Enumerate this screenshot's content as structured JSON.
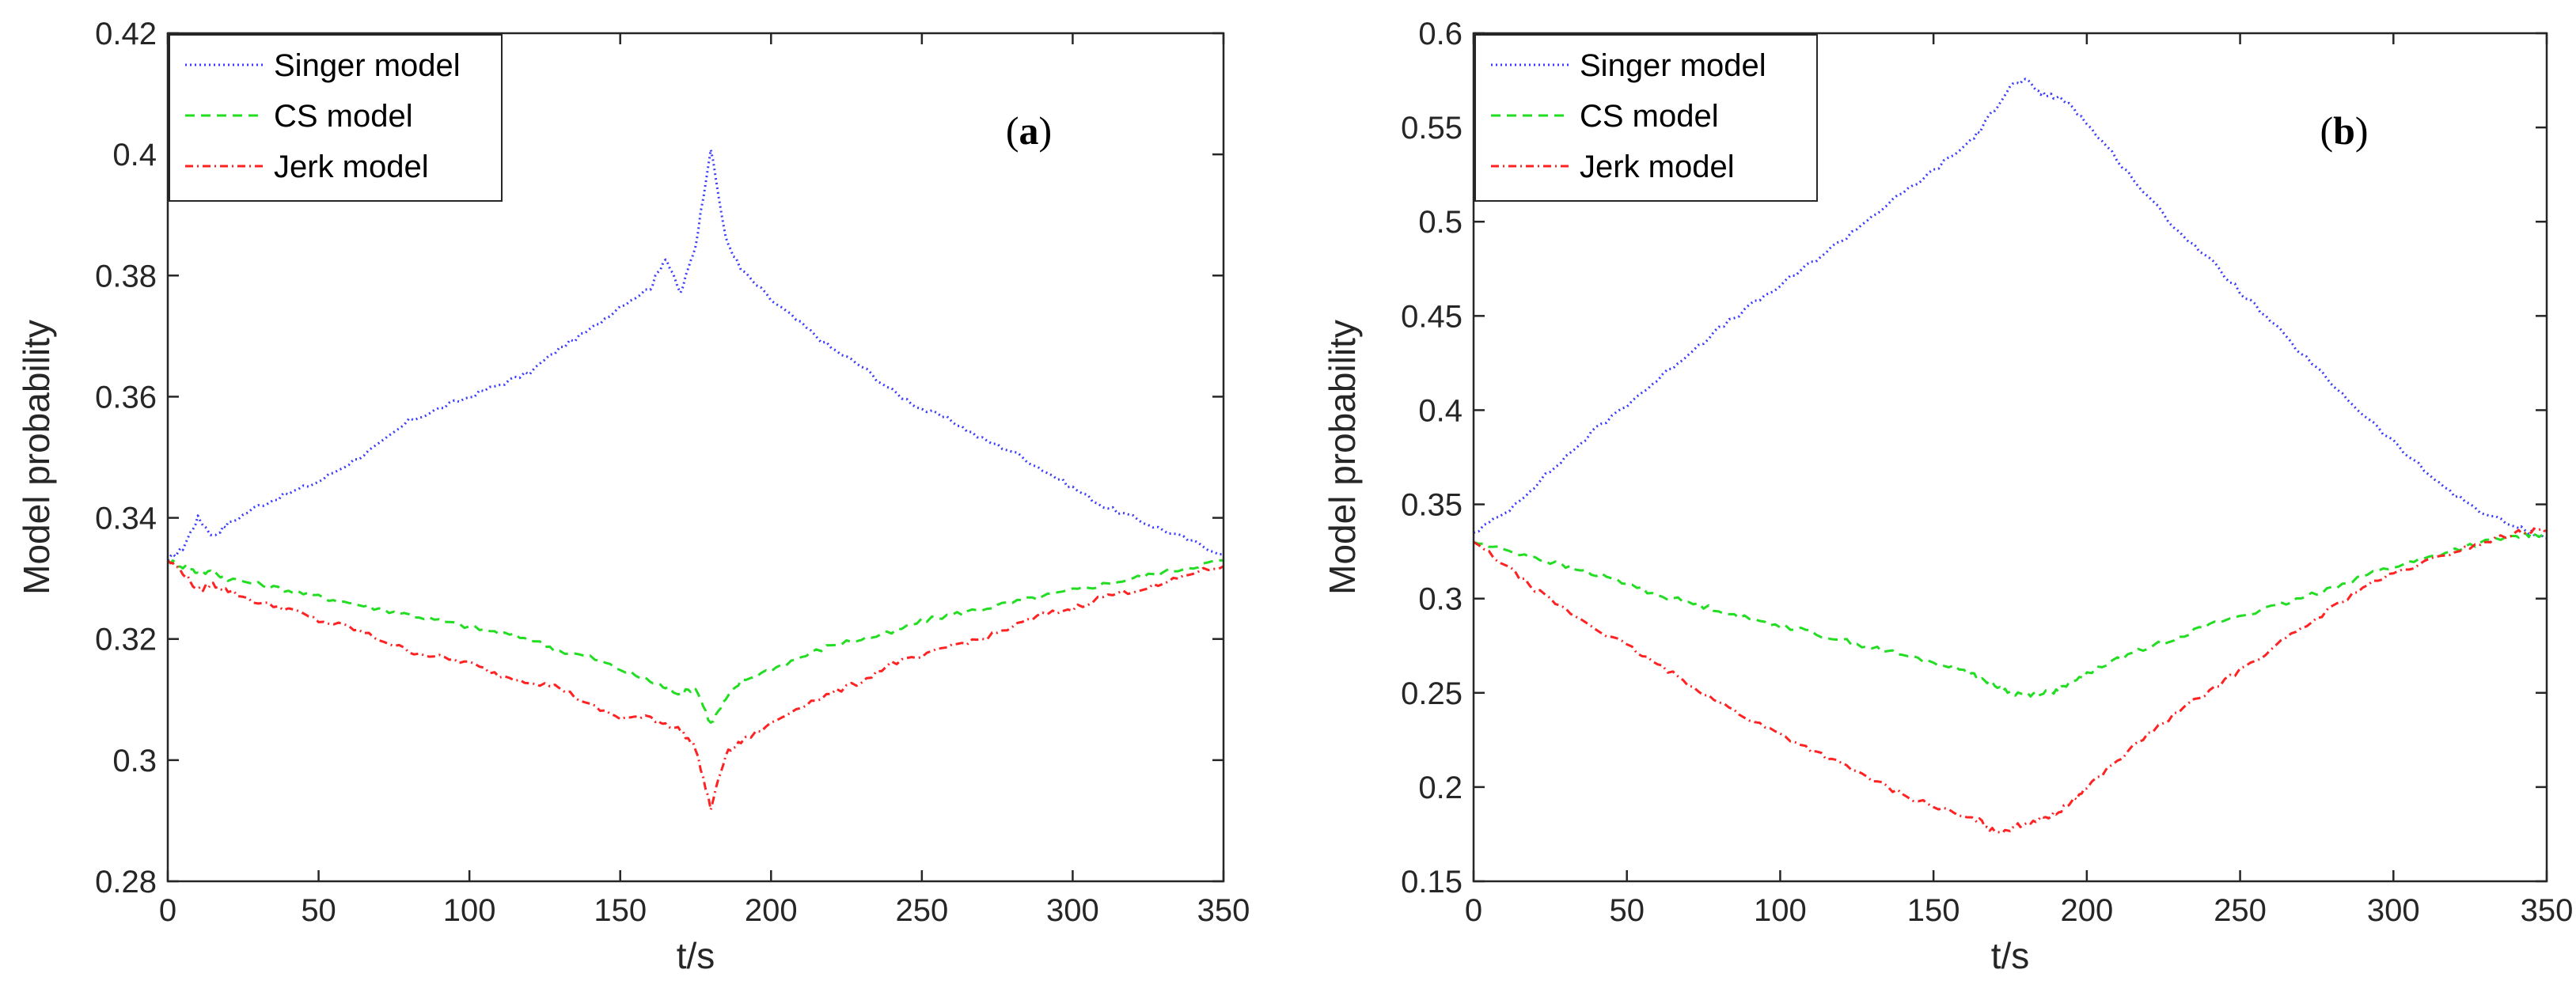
{
  "chart_data": [
    {
      "type": "line",
      "panel_label_open": "(",
      "panel_label_letter": "a",
      "panel_label_close": ")",
      "xlabel": "t/s",
      "ylabel": "Model probability",
      "xlim": [
        0,
        350
      ],
      "ylim": [
        0.28,
        0.42
      ],
      "xticks": [
        "0",
        "50",
        "100",
        "150",
        "200",
        "250",
        "300",
        "350"
      ],
      "yticks": [
        "0.28",
        "0.3",
        "0.32",
        "0.34",
        "0.36",
        "0.38",
        "0.4",
        "0.42"
      ],
      "xtick_values": [
        0,
        50,
        100,
        150,
        200,
        250,
        300,
        350
      ],
      "ytick_values": [
        0.28,
        0.3,
        0.32,
        0.34,
        0.36,
        0.38,
        0.4,
        0.42
      ],
      "grid": false,
      "legend_position": "top-left",
      "x": [
        0,
        5,
        10,
        15,
        20,
        30,
        40,
        50,
        60,
        70,
        80,
        90,
        100,
        110,
        120,
        130,
        140,
        150,
        160,
        165,
        170,
        175,
        180,
        185,
        190,
        200,
        210,
        220,
        230,
        240,
        250,
        260,
        270,
        280,
        290,
        300,
        310,
        320,
        330,
        340,
        350
      ],
      "series": [
        {
          "name": "Singer model",
          "color": "#3b3bff",
          "dash": "2,4",
          "values": [
            0.333,
            0.335,
            0.34,
            0.337,
            0.339,
            0.342,
            0.344,
            0.346,
            0.349,
            0.352,
            0.356,
            0.358,
            0.36,
            0.362,
            0.364,
            0.368,
            0.371,
            0.375,
            0.378,
            0.383,
            0.377,
            0.385,
            0.401,
            0.386,
            0.381,
            0.376,
            0.372,
            0.368,
            0.365,
            0.361,
            0.358,
            0.356,
            0.353,
            0.351,
            0.348,
            0.345,
            0.342,
            0.34,
            0.338,
            0.336,
            0.334
          ]
        },
        {
          "name": "CS model",
          "color": "#22dd22",
          "dash": "12,8",
          "values": [
            0.333,
            0.332,
            0.331,
            0.331,
            0.33,
            0.329,
            0.328,
            0.327,
            0.326,
            0.325,
            0.324,
            0.323,
            0.322,
            0.321,
            0.32,
            0.318,
            0.317,
            0.315,
            0.313,
            0.312,
            0.311,
            0.312,
            0.306,
            0.31,
            0.313,
            0.315,
            0.317,
            0.319,
            0.32,
            0.321,
            0.323,
            0.324,
            0.325,
            0.326,
            0.327,
            0.328,
            0.329,
            0.33,
            0.331,
            0.332,
            0.333
          ]
        },
        {
          "name": "Jerk model",
          "color": "#ff2222",
          "dash": "10,5,2,5",
          "values": [
            0.333,
            0.331,
            0.328,
            0.329,
            0.328,
            0.326,
            0.325,
            0.323,
            0.322,
            0.32,
            0.318,
            0.317,
            0.316,
            0.314,
            0.313,
            0.312,
            0.309,
            0.307,
            0.307,
            0.306,
            0.305,
            0.302,
            0.292,
            0.301,
            0.303,
            0.306,
            0.309,
            0.311,
            0.313,
            0.316,
            0.317,
            0.319,
            0.32,
            0.322,
            0.324,
            0.325,
            0.327,
            0.328,
            0.329,
            0.331,
            0.332
          ]
        }
      ]
    },
    {
      "type": "line",
      "panel_label_open": "(",
      "panel_label_letter": "b",
      "panel_label_close": ")",
      "xlabel": "t/s",
      "ylabel": "Model probability",
      "xlim": [
        0,
        350
      ],
      "ylim": [
        0.15,
        0.6
      ],
      "xticks": [
        "0",
        "50",
        "100",
        "150",
        "200",
        "250",
        "300",
        "350"
      ],
      "yticks": [
        "0.15",
        "0.2",
        "0.25",
        "0.3",
        "0.35",
        "0.4",
        "0.45",
        "0.5",
        "0.55",
        "0.6"
      ],
      "xtick_values": [
        0,
        50,
        100,
        150,
        200,
        250,
        300,
        350
      ],
      "ytick_values": [
        0.15,
        0.2,
        0.25,
        0.3,
        0.35,
        0.4,
        0.45,
        0.5,
        0.55,
        0.6
      ],
      "grid": false,
      "legend_position": "top-left",
      "x": [
        0,
        10,
        20,
        30,
        40,
        50,
        60,
        70,
        80,
        90,
        100,
        110,
        120,
        130,
        140,
        150,
        160,
        165,
        170,
        175,
        180,
        185,
        190,
        195,
        200,
        210,
        220,
        230,
        240,
        250,
        260,
        270,
        280,
        290,
        300,
        310,
        320,
        330,
        340,
        345,
        350
      ],
      "series": [
        {
          "name": "Singer model",
          "color": "#3b3bff",
          "dash": "2,4",
          "values": [
            0.335,
            0.345,
            0.36,
            0.375,
            0.39,
            0.403,
            0.416,
            0.43,
            0.443,
            0.455,
            0.466,
            0.478,
            0.49,
            0.503,
            0.515,
            0.527,
            0.54,
            0.548,
            0.56,
            0.572,
            0.575,
            0.568,
            0.566,
            0.562,
            0.552,
            0.533,
            0.513,
            0.495,
            0.48,
            0.463,
            0.447,
            0.43,
            0.414,
            0.398,
            0.383,
            0.368,
            0.355,
            0.345,
            0.338,
            0.335,
            0.332
          ]
        },
        {
          "name": "CS model",
          "color": "#22dd22",
          "dash": "12,8",
          "values": [
            0.33,
            0.326,
            0.322,
            0.317,
            0.313,
            0.308,
            0.302,
            0.298,
            0.294,
            0.289,
            0.286,
            0.282,
            0.278,
            0.274,
            0.27,
            0.266,
            0.262,
            0.258,
            0.254,
            0.25,
            0.249,
            0.25,
            0.251,
            0.255,
            0.26,
            0.268,
            0.274,
            0.28,
            0.286,
            0.291,
            0.295,
            0.3,
            0.306,
            0.312,
            0.317,
            0.321,
            0.326,
            0.33,
            0.333,
            0.334,
            0.334
          ]
        },
        {
          "name": "Jerk model",
          "color": "#ff2222",
          "dash": "10,5,2,5",
          "values": [
            0.33,
            0.318,
            0.305,
            0.294,
            0.284,
            0.275,
            0.265,
            0.255,
            0.245,
            0.236,
            0.228,
            0.22,
            0.212,
            0.204,
            0.196,
            0.19,
            0.184,
            0.182,
            0.176,
            0.178,
            0.181,
            0.183,
            0.186,
            0.192,
            0.2,
            0.214,
            0.228,
            0.24,
            0.251,
            0.262,
            0.273,
            0.284,
            0.295,
            0.306,
            0.313,
            0.319,
            0.325,
            0.33,
            0.335,
            0.336,
            0.336
          ]
        }
      ]
    }
  ]
}
